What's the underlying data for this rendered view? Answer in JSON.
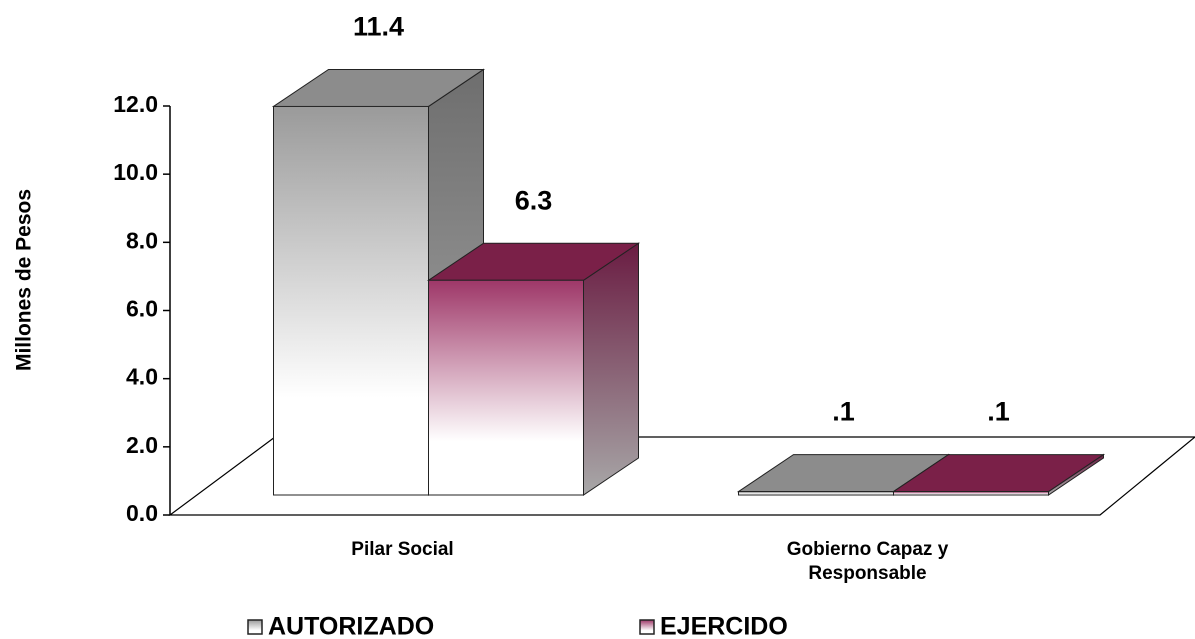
{
  "chart_data": {
    "type": "bar3d",
    "y_label": "Millones de Pesos",
    "categories": [
      "Pilar Social",
      "Gobierno Capaz y Responsable"
    ],
    "series": [
      {
        "name": "AUTORIZADO",
        "color": "#8c8c8c",
        "values": [
          11.4,
          0.1
        ],
        "value_labels": [
          "11.4",
          ".1"
        ]
      },
      {
        "name": "EJERCIDO",
        "color": "#7a2048",
        "values": [
          6.3,
          0.1
        ],
        "value_labels": [
          "6.3",
          ".1"
        ]
      }
    ],
    "ylim": [
      0,
      12
    ],
    "yticks": [
      {
        "value": 0,
        "label": "0.0"
      },
      {
        "value": 2,
        "label": "2.0"
      },
      {
        "value": 4,
        "label": "4.0"
      },
      {
        "value": 6,
        "label": "6.0"
      },
      {
        "value": 8,
        "label": "8.0"
      },
      {
        "value": 10,
        "label": "10.0"
      },
      {
        "value": 12,
        "label": "12.0"
      }
    ],
    "legend": "bottom"
  }
}
